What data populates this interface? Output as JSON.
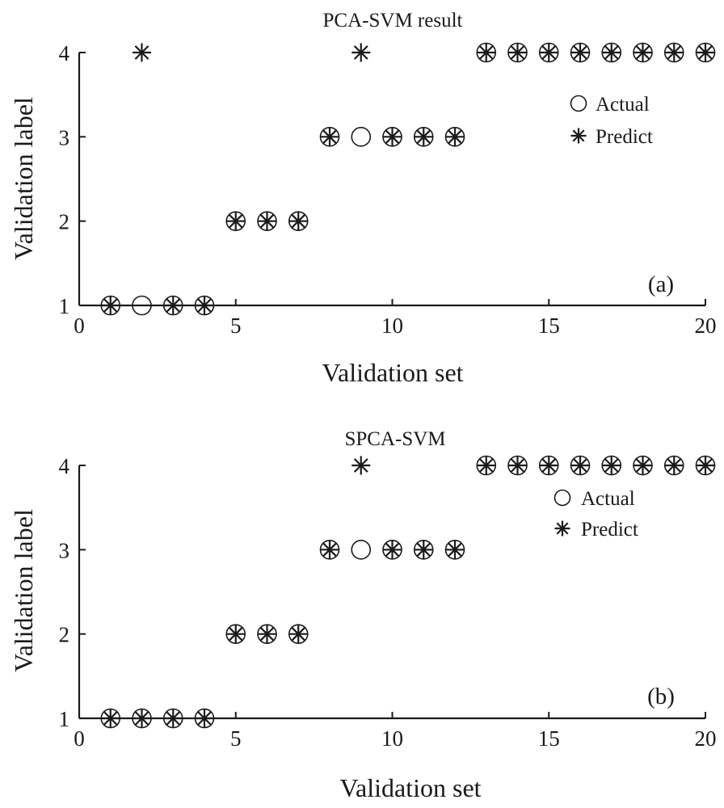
{
  "chart_data": [
    {
      "type": "scatter",
      "title": "PCA-SVM result",
      "xlabel": "Validation set",
      "ylabel": "Validation label",
      "panel_tag": "(a)",
      "xlim": [
        0,
        20
      ],
      "ylim": [
        1,
        4
      ],
      "xticks": [
        0,
        5,
        10,
        15,
        20
      ],
      "yticks": [
        1,
        2,
        3,
        4
      ],
      "grid": false,
      "legend_position": "top-right",
      "x": [
        1,
        2,
        3,
        4,
        5,
        6,
        7,
        8,
        9,
        10,
        11,
        12,
        13,
        14,
        15,
        16,
        17,
        18,
        19,
        20
      ],
      "series": [
        {
          "name": "Actual",
          "marker": "circle",
          "values": [
            1,
            1,
            1,
            1,
            2,
            2,
            2,
            3,
            3,
            3,
            3,
            3,
            4,
            4,
            4,
            4,
            4,
            4,
            4,
            4
          ]
        },
        {
          "name": "Predict",
          "marker": "asterisk",
          "values": [
            1,
            4,
            1,
            1,
            2,
            2,
            2,
            3,
            4,
            3,
            3,
            3,
            4,
            4,
            4,
            4,
            4,
            4,
            4,
            4
          ]
        }
      ]
    },
    {
      "type": "scatter",
      "title": "SPCA-SVM",
      "xlabel": "Validation set",
      "ylabel": "Validation label",
      "panel_tag": "(b)",
      "xlim": [
        0,
        20
      ],
      "ylim": [
        1,
        4
      ],
      "xticks": [
        0,
        5,
        10,
        15,
        20
      ],
      "yticks": [
        1,
        2,
        3,
        4
      ],
      "grid": false,
      "legend_position": "top-right",
      "x": [
        1,
        2,
        3,
        4,
        5,
        6,
        7,
        8,
        9,
        10,
        11,
        12,
        13,
        14,
        15,
        16,
        17,
        18,
        19,
        20
      ],
      "series": [
        {
          "name": "Actual",
          "marker": "circle",
          "values": [
            1,
            1,
            1,
            1,
            2,
            2,
            2,
            3,
            3,
            3,
            3,
            3,
            4,
            4,
            4,
            4,
            4,
            4,
            4,
            4
          ]
        },
        {
          "name": "Predict",
          "marker": "asterisk",
          "values": [
            1,
            1,
            1,
            1,
            2,
            2,
            2,
            3,
            4,
            3,
            3,
            3,
            4,
            4,
            4,
            4,
            4,
            4,
            4,
            4
          ]
        }
      ]
    }
  ]
}
